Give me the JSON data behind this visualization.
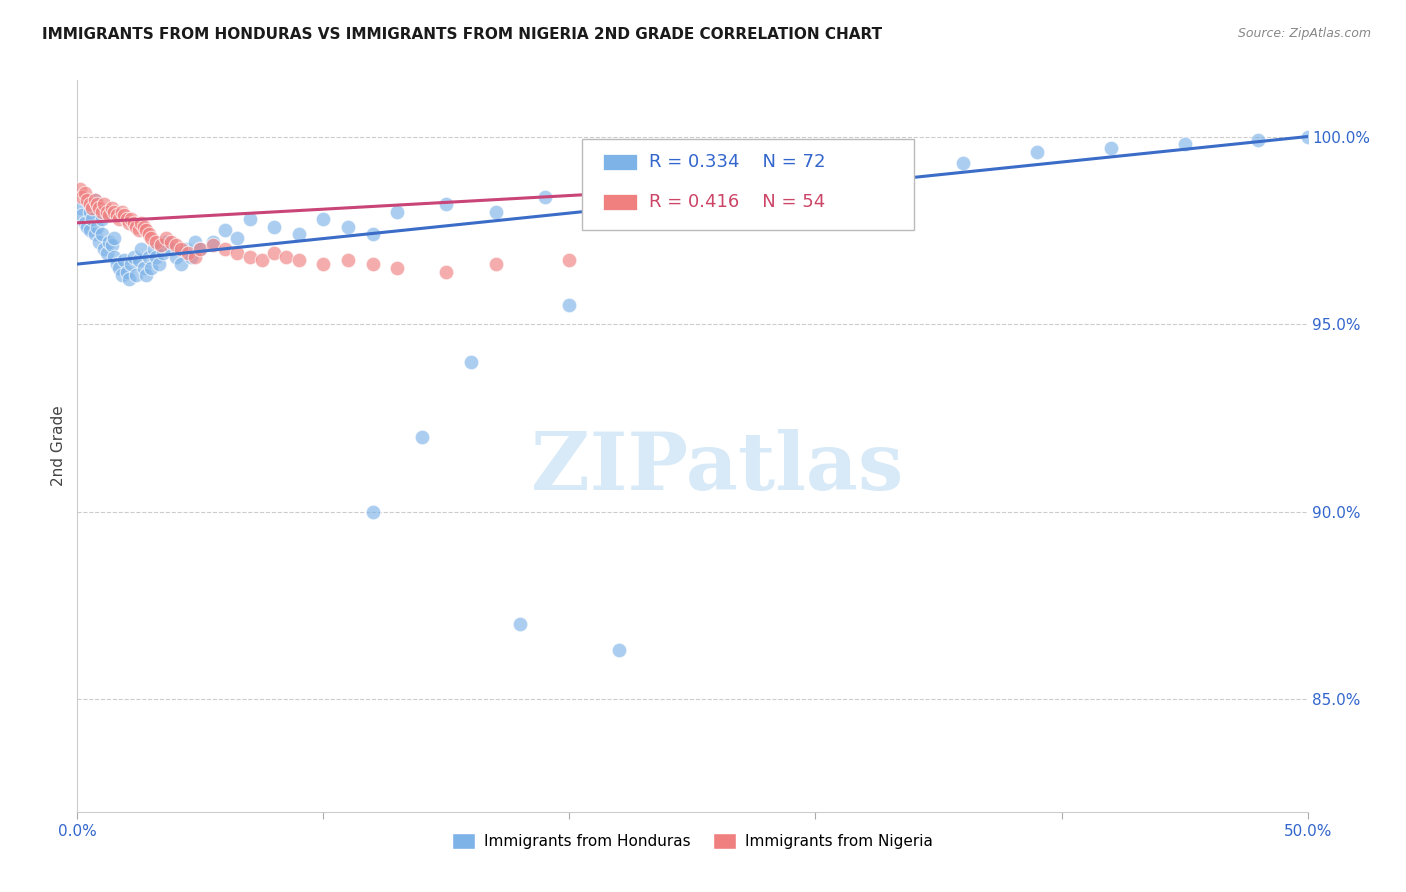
{
  "title": "IMMIGRANTS FROM HONDURAS VS IMMIGRANTS FROM NIGERIA 2ND GRADE CORRELATION CHART",
  "source": "Source: ZipAtlas.com",
  "ylabel": "2nd Grade",
  "xlim": [
    0.0,
    0.5
  ],
  "ylim": [
    0.82,
    1.015
  ],
  "xtick_positions": [
    0.0,
    0.1,
    0.2,
    0.3,
    0.4,
    0.5
  ],
  "xtick_labels": [
    "0.0%",
    "",
    "",
    "",
    "",
    "50.0%"
  ],
  "ytick_positions": [
    0.85,
    0.9,
    0.95,
    1.0
  ],
  "ytick_labels": [
    "85.0%",
    "90.0%",
    "95.0%",
    "100.0%"
  ],
  "grid_color": "#cccccc",
  "background_color": "#ffffff",
  "honduras_color": "#7EB3E8",
  "nigeria_color": "#F08080",
  "honduras_line_color": "#3B6CC7",
  "nigeria_line_color": "#C94477",
  "legend_R_honduras": "0.334",
  "legend_N_honduras": "72",
  "legend_R_nigeria": "0.416",
  "legend_N_nigeria": "54",
  "watermark": "ZIPatlas",
  "watermark_color": "#d8eaf7",
  "honduras_x": [
    0.001,
    0.002,
    0.003,
    0.004,
    0.005,
    0.005,
    0.006,
    0.007,
    0.007,
    0.008,
    0.009,
    0.01,
    0.01,
    0.011,
    0.012,
    0.013,
    0.014,
    0.015,
    0.015,
    0.016,
    0.017,
    0.018,
    0.019,
    0.02,
    0.021,
    0.022,
    0.023,
    0.024,
    0.025,
    0.026,
    0.027,
    0.028,
    0.029,
    0.03,
    0.031,
    0.032,
    0.033,
    0.034,
    0.035,
    0.036,
    0.038,
    0.04,
    0.042,
    0.044,
    0.046,
    0.048,
    0.05,
    0.055,
    0.06,
    0.065,
    0.07,
    0.08,
    0.09,
    0.1,
    0.11,
    0.12,
    0.13,
    0.15,
    0.17,
    0.19,
    0.21,
    0.23,
    0.25,
    0.27,
    0.3,
    0.33,
    0.36,
    0.39,
    0.42,
    0.45,
    0.48,
    0.5
  ],
  "honduras_y": [
    0.981,
    0.979,
    0.977,
    0.976,
    0.975,
    0.98,
    0.978,
    0.974,
    0.983,
    0.976,
    0.972,
    0.978,
    0.974,
    0.97,
    0.969,
    0.972,
    0.971,
    0.973,
    0.968,
    0.966,
    0.965,
    0.963,
    0.967,
    0.964,
    0.962,
    0.966,
    0.968,
    0.963,
    0.967,
    0.97,
    0.965,
    0.963,
    0.968,
    0.965,
    0.97,
    0.968,
    0.966,
    0.971,
    0.969,
    0.972,
    0.97,
    0.968,
    0.966,
    0.97,
    0.968,
    0.972,
    0.97,
    0.972,
    0.975,
    0.973,
    0.978,
    0.976,
    0.974,
    0.978,
    0.976,
    0.974,
    0.98,
    0.982,
    0.98,
    0.984,
    0.987,
    0.985,
    0.988,
    0.99,
    0.992,
    0.994,
    0.993,
    0.996,
    0.997,
    0.998,
    0.999,
    1.0
  ],
  "honduras_y_outliers": [
    0.9,
    0.87,
    0.92,
    0.94,
    0.955,
    0.863
  ],
  "honduras_x_outliers": [
    0.12,
    0.18,
    0.14,
    0.16,
    0.2,
    0.22
  ],
  "nigeria_x": [
    0.001,
    0.002,
    0.003,
    0.004,
    0.005,
    0.006,
    0.007,
    0.008,
    0.009,
    0.01,
    0.011,
    0.012,
    0.013,
    0.014,
    0.015,
    0.016,
    0.017,
    0.018,
    0.019,
    0.02,
    0.021,
    0.022,
    0.023,
    0.024,
    0.025,
    0.026,
    0.027,
    0.028,
    0.029,
    0.03,
    0.032,
    0.034,
    0.036,
    0.038,
    0.04,
    0.042,
    0.045,
    0.048,
    0.05,
    0.055,
    0.06,
    0.065,
    0.07,
    0.075,
    0.08,
    0.085,
    0.09,
    0.1,
    0.11,
    0.12,
    0.13,
    0.15,
    0.17,
    0.2
  ],
  "nigeria_y": [
    0.986,
    0.984,
    0.985,
    0.983,
    0.982,
    0.981,
    0.983,
    0.982,
    0.981,
    0.98,
    0.982,
    0.98,
    0.979,
    0.981,
    0.98,
    0.979,
    0.978,
    0.98,
    0.979,
    0.978,
    0.977,
    0.978,
    0.977,
    0.976,
    0.975,
    0.977,
    0.976,
    0.975,
    0.974,
    0.973,
    0.972,
    0.971,
    0.973,
    0.972,
    0.971,
    0.97,
    0.969,
    0.968,
    0.97,
    0.971,
    0.97,
    0.969,
    0.968,
    0.967,
    0.969,
    0.968,
    0.967,
    0.966,
    0.967,
    0.966,
    0.965,
    0.964,
    0.966,
    0.967
  ]
}
